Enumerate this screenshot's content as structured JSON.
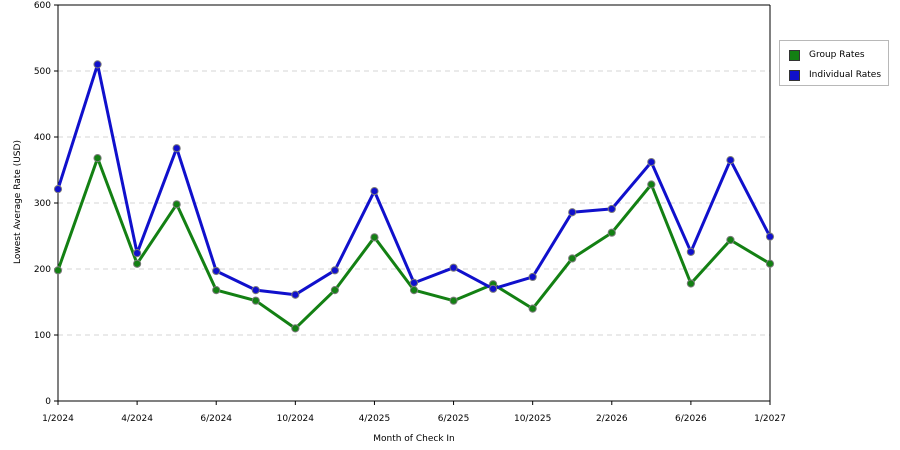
{
  "chart_data": {
    "type": "line",
    "xlabel": "Month of Check In",
    "ylabel": "Lowest Average Rate (USD)",
    "ylim": [
      0,
      600
    ],
    "yticks": [
      0,
      100,
      200,
      300,
      400,
      500,
      600
    ],
    "x_tick_labels": [
      "1/2024",
      "4/2024",
      "6/2024",
      "10/2024",
      "4/2025",
      "6/2025",
      "10/2025",
      "2/2026",
      "6/2026",
      "1/2027"
    ],
    "grid": "horizontal dashed",
    "legend_position": "top-right",
    "series": [
      {
        "name": "Group Rates",
        "color": "#138013",
        "values": [
          198,
          368,
          208,
          298,
          168,
          152,
          110,
          168,
          248,
          168,
          152,
          177,
          140,
          216,
          255,
          328,
          178,
          244,
          208
        ]
      },
      {
        "name": "Individual Rates",
        "color": "#1010cc",
        "values": [
          321,
          510,
          224,
          383,
          197,
          168,
          161,
          198,
          318,
          179,
          202,
          170,
          188,
          286,
          291,
          362,
          226,
          365,
          249
        ]
      }
    ]
  }
}
